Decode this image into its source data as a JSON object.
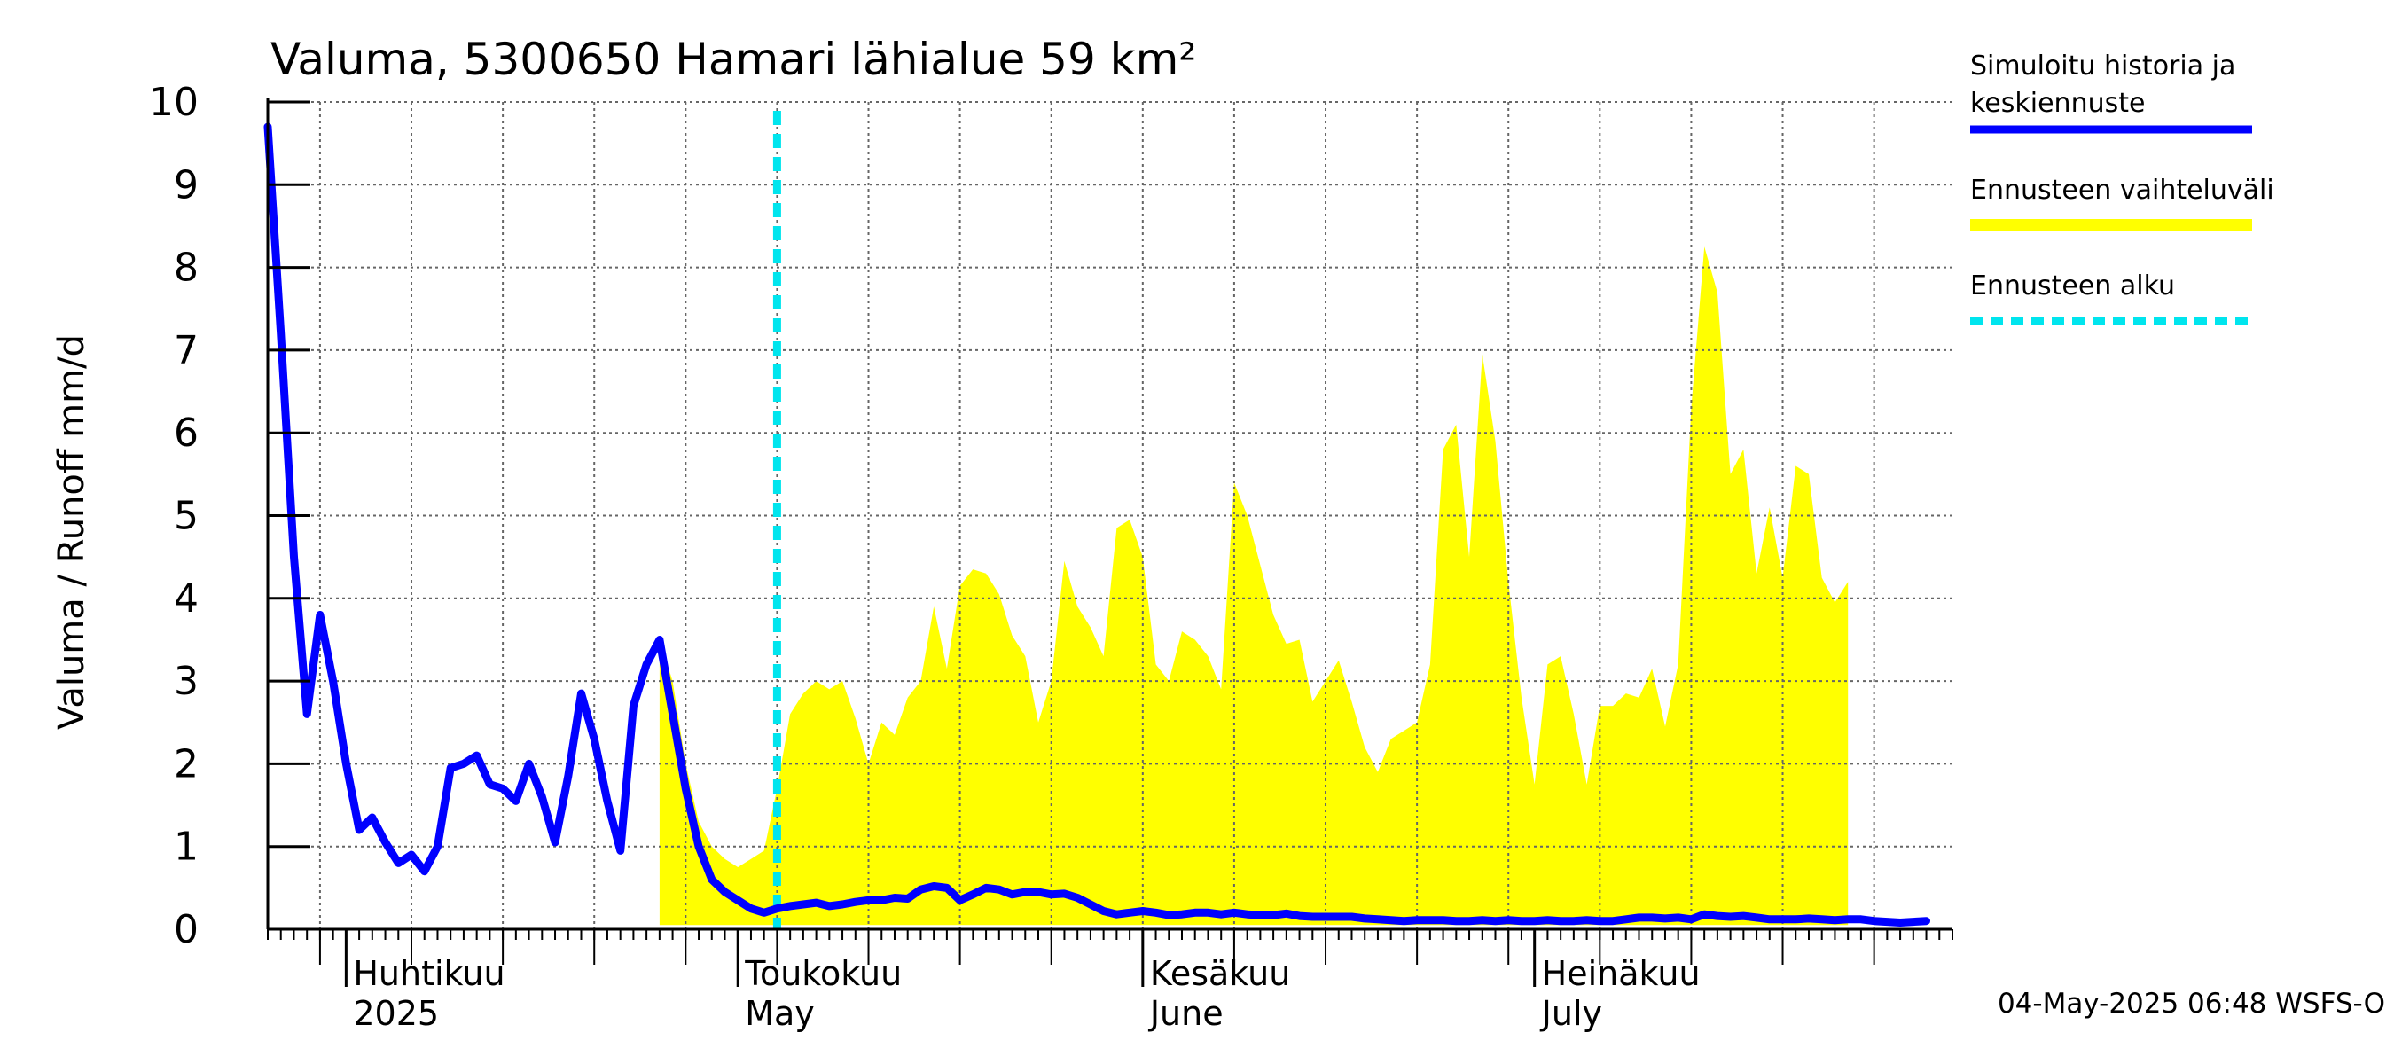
{
  "chart_data": {
    "type": "area",
    "title": "Valuma, 5300650 Hamari lähialue 59 km²",
    "ylabel": "Valuma / Runoff    mm/d",
    "xlabel": "",
    "ylim": [
      0,
      10
    ],
    "yticks": [
      "0",
      "1",
      "2",
      "3",
      "4",
      "5",
      "6",
      "7",
      "8",
      "9",
      "10"
    ],
    "x_start_date": "2025-03-26",
    "x_end_date": "2025-08-02",
    "grid": true,
    "forecast_start_date": "2025-05-04",
    "months": [
      {
        "fi": "Huhtikuu",
        "en": "2025",
        "date": "2025-04-01"
      },
      {
        "fi": "Toukokuu",
        "en": "May",
        "date": "2025-05-01"
      },
      {
        "fi": "Kesäkuu",
        "en": "June",
        "date": "2025-06-01"
      },
      {
        "fi": "Heinäkuu",
        "en": "July",
        "date": "2025-07-01"
      }
    ],
    "legend": {
      "placement": "right",
      "items": [
        {
          "label_line1": "Simuloitu historia ja",
          "label_line2": "keskiennuste",
          "color": "#0000ff",
          "style": "solid"
        },
        {
          "label_line1": "Ennusteen vaihteluväli",
          "label_line2": "",
          "color": "#ffff00",
          "style": "band"
        },
        {
          "label_line1": "Ennusteen alku",
          "label_line2": "",
          "color": "#00e5ee",
          "style": "dashed"
        }
      ]
    },
    "series": [
      {
        "name": "Simuloitu historia ja keskiennuste",
        "color": "#0000ff",
        "points": [
          [
            "2025-03-26",
            9.7
          ],
          [
            "2025-03-27",
            7.2
          ],
          [
            "2025-03-28",
            4.5
          ],
          [
            "2025-03-29",
            2.6
          ],
          [
            "2025-03-30",
            3.8
          ],
          [
            "2025-03-31",
            3.0
          ],
          [
            "2025-04-01",
            2.0
          ],
          [
            "2025-04-02",
            1.2
          ],
          [
            "2025-04-03",
            1.35
          ],
          [
            "2025-04-04",
            1.05
          ],
          [
            "2025-04-05",
            0.8
          ],
          [
            "2025-04-06",
            0.9
          ],
          [
            "2025-04-07",
            0.7
          ],
          [
            "2025-04-08",
            1.0
          ],
          [
            "2025-04-09",
            1.95
          ],
          [
            "2025-04-10",
            2.0
          ],
          [
            "2025-04-11",
            2.1
          ],
          [
            "2025-04-12",
            1.75
          ],
          [
            "2025-04-13",
            1.7
          ],
          [
            "2025-04-14",
            1.55
          ],
          [
            "2025-04-15",
            2.0
          ],
          [
            "2025-04-16",
            1.6
          ],
          [
            "2025-04-17",
            1.05
          ],
          [
            "2025-04-18",
            1.85
          ],
          [
            "2025-04-19",
            2.85
          ],
          [
            "2025-04-20",
            2.3
          ],
          [
            "2025-04-21",
            1.55
          ],
          [
            "2025-04-22",
            0.95
          ],
          [
            "2025-04-23",
            2.7
          ],
          [
            "2025-04-24",
            3.2
          ],
          [
            "2025-04-25",
            3.5
          ],
          [
            "2025-04-26",
            2.6
          ],
          [
            "2025-04-27",
            1.7
          ],
          [
            "2025-04-28",
            1.0
          ],
          [
            "2025-04-29",
            0.6
          ],
          [
            "2025-04-30",
            0.45
          ],
          [
            "2025-05-01",
            0.35
          ],
          [
            "2025-05-02",
            0.25
          ],
          [
            "2025-05-03",
            0.2
          ],
          [
            "2025-05-04",
            0.25
          ],
          [
            "2025-05-05",
            0.28
          ],
          [
            "2025-05-06",
            0.3
          ],
          [
            "2025-05-07",
            0.32
          ],
          [
            "2025-05-08",
            0.28
          ],
          [
            "2025-05-09",
            0.3
          ],
          [
            "2025-05-10",
            0.33
          ],
          [
            "2025-05-11",
            0.35
          ],
          [
            "2025-05-12",
            0.35
          ],
          [
            "2025-05-13",
            0.38
          ],
          [
            "2025-05-14",
            0.37
          ],
          [
            "2025-05-15",
            0.48
          ],
          [
            "2025-05-16",
            0.52
          ],
          [
            "2025-05-17",
            0.5
          ],
          [
            "2025-05-18",
            0.35
          ],
          [
            "2025-05-19",
            0.42
          ],
          [
            "2025-05-20",
            0.5
          ],
          [
            "2025-05-21",
            0.48
          ],
          [
            "2025-05-22",
            0.42
          ],
          [
            "2025-05-23",
            0.45
          ],
          [
            "2025-05-24",
            0.45
          ],
          [
            "2025-05-25",
            0.42
          ],
          [
            "2025-05-26",
            0.43
          ],
          [
            "2025-05-27",
            0.38
          ],
          [
            "2025-05-28",
            0.3
          ],
          [
            "2025-05-29",
            0.22
          ],
          [
            "2025-05-30",
            0.18
          ],
          [
            "2025-05-31",
            0.2
          ],
          [
            "2025-06-01",
            0.22
          ],
          [
            "2025-06-02",
            0.2
          ],
          [
            "2025-06-03",
            0.17
          ],
          [
            "2025-06-04",
            0.18
          ],
          [
            "2025-06-05",
            0.2
          ],
          [
            "2025-06-06",
            0.2
          ],
          [
            "2025-06-07",
            0.18
          ],
          [
            "2025-06-08",
            0.2
          ],
          [
            "2025-06-09",
            0.18
          ],
          [
            "2025-06-10",
            0.17
          ],
          [
            "2025-06-11",
            0.17
          ],
          [
            "2025-06-12",
            0.19
          ],
          [
            "2025-06-13",
            0.16
          ],
          [
            "2025-06-14",
            0.15
          ],
          [
            "2025-06-15",
            0.15
          ],
          [
            "2025-06-16",
            0.15
          ],
          [
            "2025-06-17",
            0.15
          ],
          [
            "2025-06-18",
            0.13
          ],
          [
            "2025-06-19",
            0.12
          ],
          [
            "2025-06-20",
            0.11
          ],
          [
            "2025-06-21",
            0.1
          ],
          [
            "2025-06-22",
            0.11
          ],
          [
            "2025-06-23",
            0.11
          ],
          [
            "2025-06-24",
            0.11
          ],
          [
            "2025-06-25",
            0.1
          ],
          [
            "2025-06-26",
            0.1
          ],
          [
            "2025-06-27",
            0.11
          ],
          [
            "2025-06-28",
            0.1
          ],
          [
            "2025-06-29",
            0.11
          ],
          [
            "2025-06-30",
            0.1
          ],
          [
            "2025-07-01",
            0.1
          ],
          [
            "2025-07-02",
            0.11
          ],
          [
            "2025-07-03",
            0.1
          ],
          [
            "2025-07-04",
            0.1
          ],
          [
            "2025-07-05",
            0.11
          ],
          [
            "2025-07-06",
            0.1
          ],
          [
            "2025-07-07",
            0.1
          ],
          [
            "2025-07-08",
            0.12
          ],
          [
            "2025-07-09",
            0.14
          ],
          [
            "2025-07-10",
            0.14
          ],
          [
            "2025-07-11",
            0.13
          ],
          [
            "2025-07-12",
            0.14
          ],
          [
            "2025-07-13",
            0.12
          ],
          [
            "2025-07-14",
            0.18
          ],
          [
            "2025-07-15",
            0.16
          ],
          [
            "2025-07-16",
            0.15
          ],
          [
            "2025-07-17",
            0.16
          ],
          [
            "2025-07-18",
            0.14
          ],
          [
            "2025-07-19",
            0.12
          ],
          [
            "2025-07-20",
            0.12
          ],
          [
            "2025-07-21",
            0.12
          ],
          [
            "2025-07-22",
            0.13
          ],
          [
            "2025-07-23",
            0.12
          ],
          [
            "2025-07-24",
            0.11
          ],
          [
            "2025-07-25",
            0.12
          ],
          [
            "2025-07-26",
            0.12
          ],
          [
            "2025-07-27",
            0.1
          ],
          [
            "2025-07-28",
            0.09
          ],
          [
            "2025-07-29",
            0.08
          ],
          [
            "2025-07-30",
            0.09
          ],
          [
            "2025-07-31",
            0.1
          ]
        ]
      },
      {
        "name": "Ennusteen vaihteluväli",
        "color": "#ffff00",
        "upper": [
          [
            "2025-04-25",
            3.5
          ],
          [
            "2025-04-26",
            3.0
          ],
          [
            "2025-04-27",
            2.0
          ],
          [
            "2025-04-28",
            1.3
          ],
          [
            "2025-04-29",
            1.0
          ],
          [
            "2025-04-30",
            0.85
          ],
          [
            "2025-05-01",
            0.75
          ],
          [
            "2025-05-02",
            0.85
          ],
          [
            "2025-05-03",
            0.95
          ],
          [
            "2025-05-04",
            1.7
          ],
          [
            "2025-05-05",
            2.6
          ],
          [
            "2025-05-06",
            2.85
          ],
          [
            "2025-05-07",
            3.0
          ],
          [
            "2025-05-08",
            2.9
          ],
          [
            "2025-05-09",
            3.0
          ],
          [
            "2025-05-10",
            2.55
          ],
          [
            "2025-05-11",
            2.0
          ],
          [
            "2025-05-12",
            2.5
          ],
          [
            "2025-05-13",
            2.35
          ],
          [
            "2025-05-14",
            2.8
          ],
          [
            "2025-05-15",
            3.0
          ],
          [
            "2025-05-16",
            3.9
          ],
          [
            "2025-05-17",
            3.15
          ],
          [
            "2025-05-18",
            4.15
          ],
          [
            "2025-05-19",
            4.35
          ],
          [
            "2025-05-20",
            4.3
          ],
          [
            "2025-05-21",
            4.05
          ],
          [
            "2025-05-22",
            3.55
          ],
          [
            "2025-05-23",
            3.3
          ],
          [
            "2025-05-24",
            2.5
          ],
          [
            "2025-05-25",
            3.0
          ],
          [
            "2025-05-26",
            4.45
          ],
          [
            "2025-05-27",
            3.9
          ],
          [
            "2025-05-28",
            3.65
          ],
          [
            "2025-05-29",
            3.3
          ],
          [
            "2025-05-30",
            4.85
          ],
          [
            "2025-05-31",
            4.95
          ],
          [
            "2025-06-01",
            4.5
          ],
          [
            "2025-06-02",
            3.2
          ],
          [
            "2025-06-03",
            3.0
          ],
          [
            "2025-06-04",
            3.6
          ],
          [
            "2025-06-05",
            3.5
          ],
          [
            "2025-06-06",
            3.3
          ],
          [
            "2025-06-07",
            2.9
          ],
          [
            "2025-06-08",
            5.4
          ],
          [
            "2025-06-09",
            5.0
          ],
          [
            "2025-06-10",
            4.4
          ],
          [
            "2025-06-11",
            3.8
          ],
          [
            "2025-06-12",
            3.45
          ],
          [
            "2025-06-13",
            3.5
          ],
          [
            "2025-06-14",
            2.75
          ],
          [
            "2025-06-15",
            3.0
          ],
          [
            "2025-06-16",
            3.25
          ],
          [
            "2025-06-17",
            2.75
          ],
          [
            "2025-06-18",
            2.2
          ],
          [
            "2025-06-19",
            1.9
          ],
          [
            "2025-06-20",
            2.3
          ],
          [
            "2025-06-21",
            2.4
          ],
          [
            "2025-06-22",
            2.5
          ],
          [
            "2025-06-23",
            3.2
          ],
          [
            "2025-06-24",
            5.8
          ],
          [
            "2025-06-25",
            6.1
          ],
          [
            "2025-06-26",
            4.5
          ],
          [
            "2025-06-27",
            6.95
          ],
          [
            "2025-06-28",
            5.9
          ],
          [
            "2025-06-29",
            4.2
          ],
          [
            "2025-06-30",
            2.8
          ],
          [
            "2025-07-01",
            1.75
          ],
          [
            "2025-07-02",
            3.2
          ],
          [
            "2025-07-03",
            3.3
          ],
          [
            "2025-07-04",
            2.6
          ],
          [
            "2025-07-05",
            1.75
          ],
          [
            "2025-07-06",
            2.7
          ],
          [
            "2025-07-07",
            2.7
          ],
          [
            "2025-07-08",
            2.85
          ],
          [
            "2025-07-09",
            2.8
          ],
          [
            "2025-07-10",
            3.15
          ],
          [
            "2025-07-11",
            2.45
          ],
          [
            "2025-07-12",
            3.2
          ],
          [
            "2025-07-13",
            6.3
          ],
          [
            "2025-07-14",
            8.25
          ],
          [
            "2025-07-15",
            7.7
          ],
          [
            "2025-07-16",
            5.5
          ],
          [
            "2025-07-17",
            5.8
          ],
          [
            "2025-07-18",
            4.3
          ],
          [
            "2025-07-19",
            5.1
          ],
          [
            "2025-07-20",
            4.25
          ],
          [
            "2025-07-21",
            5.6
          ],
          [
            "2025-07-22",
            5.5
          ],
          [
            "2025-07-23",
            4.25
          ],
          [
            "2025-07-24",
            3.95
          ],
          [
            "2025-07-25",
            4.2
          ]
        ],
        "lower_value": 0.05
      }
    ]
  },
  "footer": "04-May-2025 06:48 WSFS-O"
}
